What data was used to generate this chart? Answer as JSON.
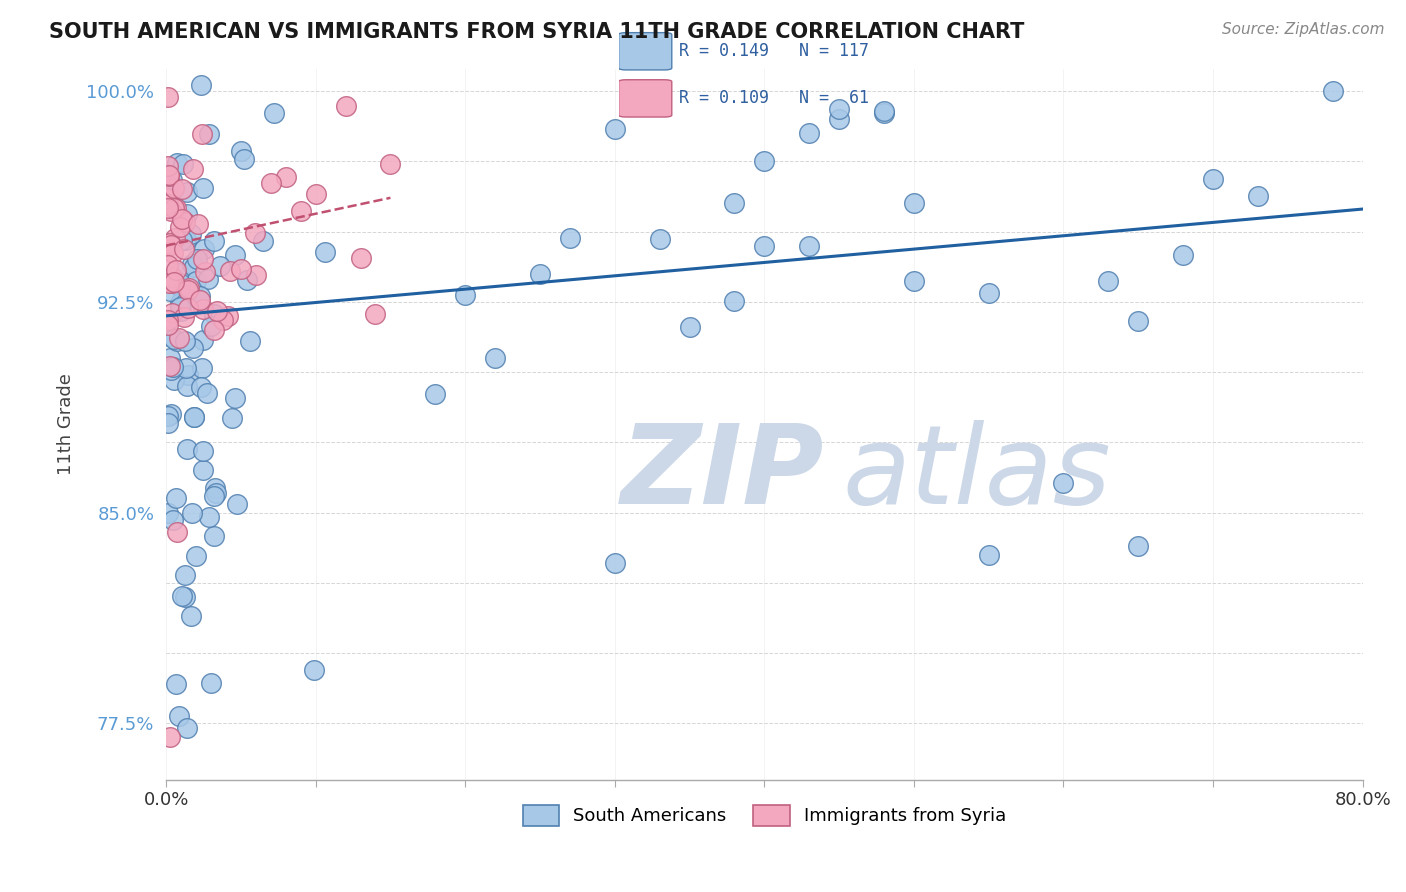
{
  "title": "SOUTH AMERICAN VS IMMIGRANTS FROM SYRIA 11TH GRADE CORRELATION CHART",
  "source_text": "Source: ZipAtlas.com",
  "ylabel": "11th Grade",
  "xlim": [
    0.0,
    0.8
  ],
  "ylim": [
    0.755,
    1.008
  ],
  "legend_R_blue": "R = 0.149",
  "legend_N_blue": "N = 117",
  "legend_R_pink": "R = 0.109",
  "legend_N_pink": "N =  61",
  "blue_color": "#a8c8e8",
  "pink_color": "#f4a8c0",
  "blue_edge": "#5080b0",
  "pink_edge": "#c06080",
  "trend_blue": "#2060a0",
  "trend_pink": "#c05070",
  "watermark_color": "#ccd8e8",
  "watermark_zip": "ZIP",
  "watermark_atlas": "atlas"
}
